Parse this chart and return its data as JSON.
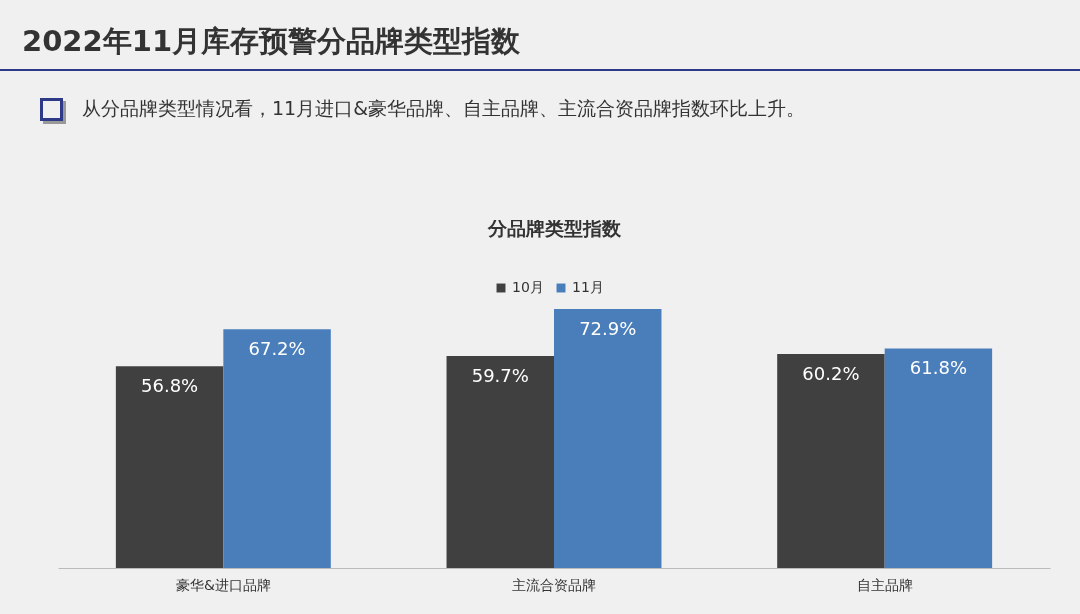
{
  "chart_data": {
    "type": "bar",
    "title": "2022年11月库存预警分品牌类型指数",
    "subtitle": "从分品牌类型情况看，11月进口&豪华品牌、自主品牌、主流合资品牌指数环比上升。",
    "annotations": [
      "分品牌类型指数"
    ],
    "categories": [
      "豪华&进口品牌",
      "主流合资品牌",
      "自主品牌"
    ],
    "series": [
      {
        "name": "10月",
        "color": "#404040",
        "values": [
          56.8,
          59.7,
          60.2
        ],
        "value_labels": [
          "56.8%",
          "59.7%",
          "60.2%"
        ]
      },
      {
        "name": "11月",
        "color": "#4a7ebb",
        "values": [
          67.2,
          72.9,
          61.8
        ],
        "value_labels": [
          "67.2%",
          "72.9%",
          "61.8%"
        ]
      }
    ],
    "legend": "top"
  }
}
